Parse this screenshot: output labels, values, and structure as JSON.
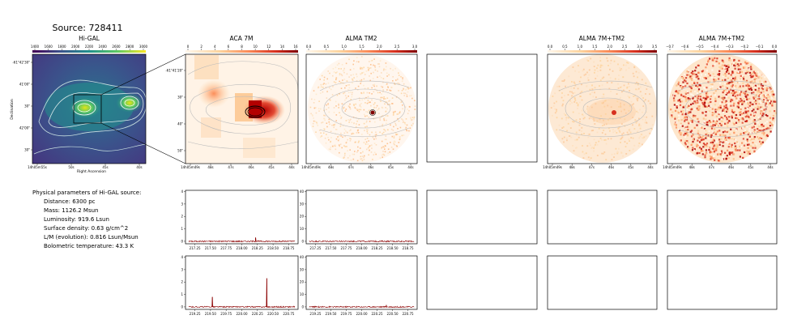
{
  "figure": {
    "title": "Source: 728411"
  },
  "panels": {
    "higal": {
      "title": "Hi-GAL",
      "colorbar_ticks": [
        "1400",
        "1600",
        "1800",
        "2000",
        "2200",
        "2400",
        "2600",
        "2800",
        "3000"
      ],
      "yticks": [
        "-61°42'30\"",
        "41'00\"",
        "30\"",
        "42'00\"",
        "30\""
      ],
      "xticks": [
        "14h05m55s",
        "50s",
        "45s",
        "40s"
      ],
      "xlabel": "Right Ascension",
      "ylabel": "Declination"
    },
    "aca7m": {
      "title": "ACA 7M",
      "colorbar_ticks": [
        "0",
        "2",
        "4",
        "6",
        "8",
        "10",
        "12",
        "14",
        "16"
      ],
      "yticks": [
        "-61°41'20\"",
        "30\"",
        "40\"",
        "50\""
      ],
      "xticks": [
        "14h05m49s",
        "48s",
        "47s",
        "46s",
        "45s",
        "44s"
      ]
    },
    "almatm2": {
      "title": "ALMA TM2",
      "colorbar_ticks": [
        "0.0",
        "0.5",
        "1.0",
        "1.5",
        "2.0",
        "2.5",
        "3.0"
      ],
      "xticks": [
        "14h05m49s",
        "48s",
        "47s",
        "46s",
        "45s",
        "44s"
      ]
    },
    "alma7mtm2": {
      "title": "ALMA 7M+TM2",
      "colorbar_ticks": [
        "0.0",
        "0.5",
        "1.0",
        "1.5",
        "2.0",
        "2.5",
        "3.0",
        "3.5"
      ],
      "xticks": [
        "14h05m49s",
        "48s",
        "47s",
        "46s",
        "45s",
        "44s"
      ]
    },
    "alma7mtm2_neg": {
      "title": "ALMA 7M+TM2",
      "colorbar_ticks": [
        "−0.7",
        "−0.6",
        "−0.5",
        "−0.4",
        "−0.3",
        "−0.2",
        "−0.1",
        "0.0"
      ],
      "xticks": [
        "14h05m49s",
        "48s",
        "47s",
        "46s",
        "45s",
        "44s"
      ]
    }
  },
  "info": {
    "heading": "Physical parameters of Hi-GAL source:",
    "lines": [
      "Distance: 6300 pc",
      "Mass: 1126.2 Msun",
      "Luminosity: 919.6 Lsun",
      "Surface density: 0.63 g/cm^2",
      "L/M (evolution): 0.816 Lsun/Msun",
      "Bolometric temperature: 43.3 K"
    ]
  },
  "chart_data": [
    {
      "type": "line",
      "panel": "spectrum-aca-row1",
      "x_ticks": [
        "217.25",
        "217.50",
        "217.75",
        "218.00",
        "218.25",
        "218.50",
        "218.75"
      ],
      "y_ticks": [
        "0",
        "1",
        "2",
        "3",
        "4"
      ],
      "xlim": [
        217.1,
        218.9
      ],
      "ylim": [
        -0.2,
        4.1
      ],
      "baseline": 0.0,
      "peaks": [
        {
          "x": 218.22,
          "y": 0.3
        }
      ]
    },
    {
      "type": "line",
      "panel": "spectrum-tm2-row1",
      "x_ticks": [
        "217.25",
        "217.50",
        "217.75",
        "218.00",
        "218.25",
        "218.50",
        "218.75"
      ],
      "y_ticks": [
        "0",
        "10",
        "20",
        "30",
        "40"
      ],
      "xlim": [
        217.1,
        218.9
      ],
      "ylim": [
        -2,
        41
      ],
      "baseline": 0.0,
      "peaks": []
    },
    {
      "type": "line",
      "panel": "spectrum-aca-row2",
      "x_ticks": [
        "219.25",
        "219.50",
        "219.75",
        "220.00",
        "220.25",
        "220.50",
        "220.75"
      ],
      "y_ticks": [
        "0",
        "1",
        "2",
        "3",
        "4"
      ],
      "xlim": [
        219.1,
        220.9
      ],
      "ylim": [
        -0.2,
        4.1
      ],
      "baseline": 0.0,
      "peaks": [
        {
          "x": 219.53,
          "y": 0.8
        },
        {
          "x": 220.4,
          "y": 2.3
        }
      ]
    },
    {
      "type": "line",
      "panel": "spectrum-tm2-row2",
      "x_ticks": [
        "219.25",
        "219.50",
        "219.75",
        "220.00",
        "220.25",
        "220.50",
        "220.75"
      ],
      "y_ticks": [
        "0",
        "10",
        "20",
        "30",
        "40"
      ],
      "xlim": [
        219.1,
        220.9
      ],
      "ylim": [
        -2,
        41
      ],
      "baseline": 0.0,
      "peaks": [
        {
          "x": 220.4,
          "y": 1.5
        }
      ]
    }
  ]
}
